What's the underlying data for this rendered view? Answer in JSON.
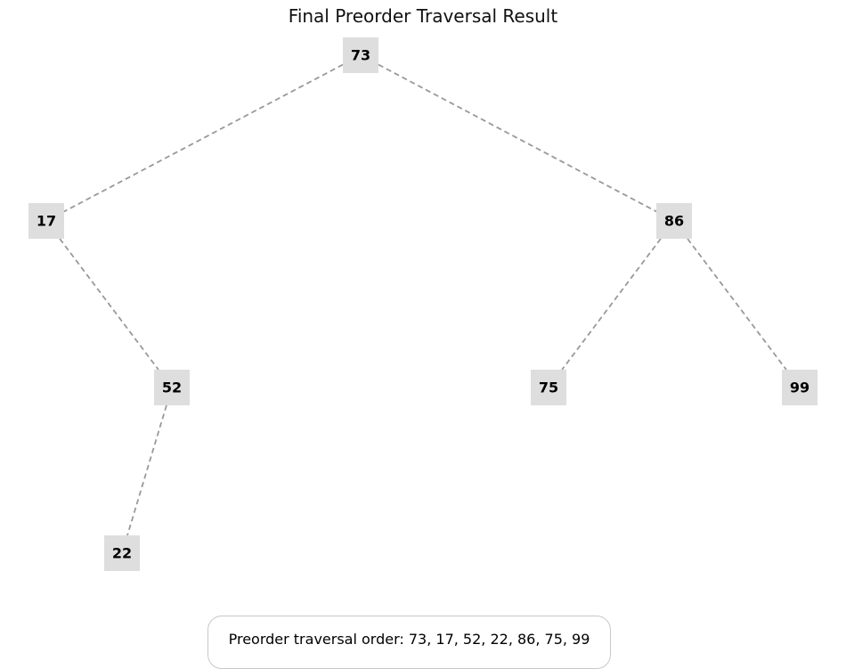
{
  "title": "Final Preorder Traversal Result",
  "tree": {
    "nodes": [
      {
        "id": "n73",
        "label": "73"
      },
      {
        "id": "n17",
        "label": "17"
      },
      {
        "id": "n86",
        "label": "86"
      },
      {
        "id": "n52",
        "label": "52"
      },
      {
        "id": "n22",
        "label": "22"
      },
      {
        "id": "n75",
        "label": "75"
      },
      {
        "id": "n99",
        "label": "99"
      }
    ],
    "edges": [
      {
        "from": "n73",
        "to": "n17"
      },
      {
        "from": "n73",
        "to": "n86"
      },
      {
        "from": "n17",
        "to": "n52"
      },
      {
        "from": "n52",
        "to": "n22"
      },
      {
        "from": "n86",
        "to": "n75"
      },
      {
        "from": "n86",
        "to": "n99"
      }
    ]
  },
  "footer": {
    "text": "Preorder traversal order: 73, 17, 52, 22, 86, 75, 99"
  },
  "colors": {
    "node_fill": "#dedede",
    "edge_stroke": "#999999",
    "footer_border": "#c8c8c8"
  }
}
